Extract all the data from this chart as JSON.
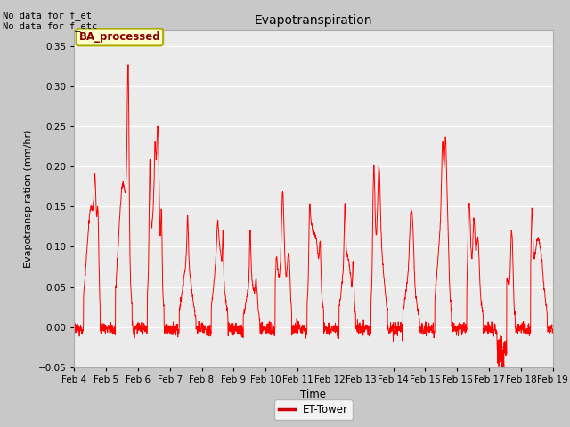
{
  "title": "Evapotranspiration",
  "xlabel": "Time",
  "ylabel": "Evapotranspiration (mm/hr)",
  "ylim": [
    -0.05,
    0.37
  ],
  "yticks": [
    -0.05,
    0.0,
    0.05,
    0.1,
    0.15,
    0.2,
    0.25,
    0.3,
    0.35
  ],
  "xtick_labels": [
    "Feb 4",
    "Feb 5",
    "Feb 6",
    "Feb 7",
    "Feb 8",
    "Feb 9",
    "Feb 10",
    "Feb 11",
    "Feb 12",
    "Feb 13",
    "Feb 14",
    "Feb 15",
    "Feb 16",
    "Feb 17",
    "Feb 18",
    "Feb 19"
  ],
  "line_color": "#ff0000",
  "line_width": 0.7,
  "fig_bg_color": "#c8c8c8",
  "plot_bg_color": "#ebebeb",
  "legend_label": "ET-Tower",
  "legend_color": "#cc0000",
  "annotation_text": "No data for f_et\nNo data for f_etc",
  "box_label": "BA_processed",
  "box_facecolor": "#ffffcc",
  "box_edgecolor": "#aaaa00",
  "box_text_color": "#880000",
  "n_days": 15,
  "pts_per_day": 144,
  "day_peaks": [
    0.19,
    0.33,
    0.25,
    0.14,
    0.13,
    0.12,
    0.17,
    0.155,
    0.155,
    0.2,
    0.145,
    0.235,
    0.155,
    0.12,
    0.15
  ]
}
